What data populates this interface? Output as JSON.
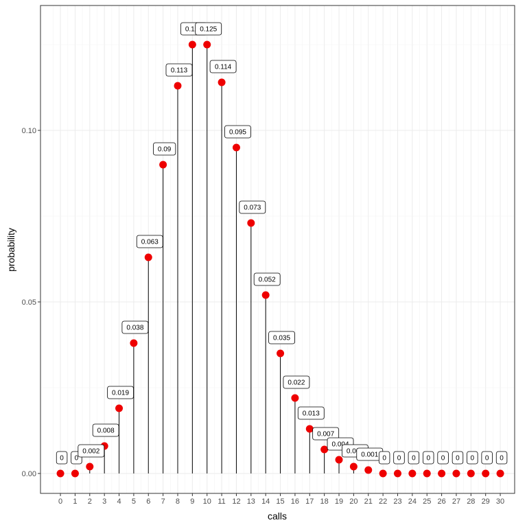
{
  "chart_data": {
    "type": "lollipop",
    "title": "",
    "xlabel": "calls",
    "ylabel": "probability",
    "x": [
      0,
      1,
      2,
      3,
      4,
      5,
      6,
      7,
      8,
      9,
      10,
      11,
      12,
      13,
      14,
      15,
      16,
      17,
      18,
      19,
      20,
      21,
      22,
      23,
      24,
      25,
      26,
      27,
      28,
      29,
      30
    ],
    "values": [
      0,
      0,
      0.002,
      0.008,
      0.019,
      0.038,
      0.063,
      0.09,
      0.113,
      0.125,
      0.125,
      0.114,
      0.095,
      0.073,
      0.052,
      0.035,
      0.022,
      0.013,
      0.007,
      0.004,
      0.002,
      0.001,
      0,
      0,
      0,
      0,
      0,
      0,
      0,
      0,
      0
    ],
    "labels": [
      "0",
      "0",
      "0.002",
      "0.008",
      "0.019",
      "0.038",
      "0.063",
      "0.09",
      "0.113",
      "0.125",
      "0.125",
      "0.114",
      "0.095",
      "0.073",
      "0.052",
      "0.035",
      "0.022",
      "0.013",
      "0.007",
      "0.004",
      "0.002",
      "0.001",
      "0",
      "0",
      "0",
      "0",
      "0",
      "0",
      "0",
      "0",
      "0"
    ],
    "x_ticks": [
      "0",
      "1",
      "2",
      "3",
      "4",
      "5",
      "6",
      "7",
      "8",
      "9",
      "10",
      "11",
      "12",
      "13",
      "14",
      "15",
      "16",
      "17",
      "18",
      "19",
      "20",
      "21",
      "22",
      "23",
      "24",
      "25",
      "26",
      "27",
      "28",
      "29",
      "30"
    ],
    "y_ticks": [
      "0.00",
      "0.05",
      "0.10"
    ],
    "y_tick_values": [
      0,
      0.05,
      0.1
    ],
    "xlim": [
      -1.36,
      30.98
    ],
    "ylim": [
      -0.0058,
      0.1364
    ],
    "grid": true,
    "point_color": "#ee0000",
    "stem_color": "#000000"
  }
}
